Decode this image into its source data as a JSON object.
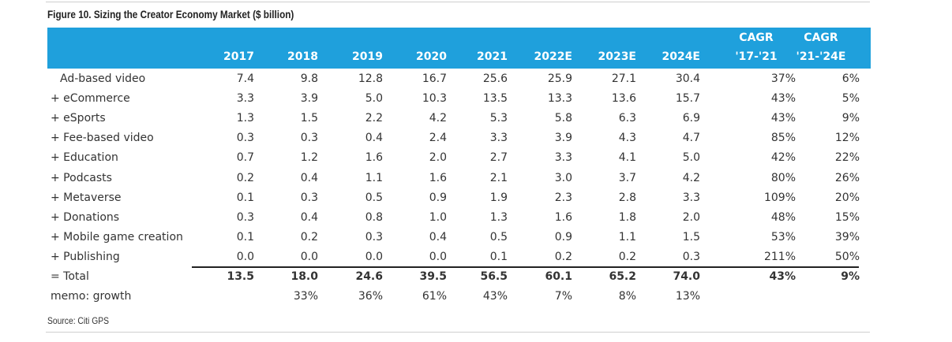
{
  "figure": {
    "title": "Figure 10. Sizing the Creator Economy Market ($ billion)",
    "source": "Source: Citi GPS"
  },
  "table": {
    "header_color": "#1fa0dc",
    "years": [
      "2017",
      "2018",
      "2019",
      "2020",
      "2021",
      "2022E",
      "2023E",
      "2024E"
    ],
    "cagr1": {
      "top": "CAGR",
      "bottom": "'17-'21"
    },
    "cagr2": {
      "top": "CAGR",
      "bottom": "'21-'24E"
    },
    "rows": [
      {
        "label": "Ad-based video",
        "values": [
          "7.4",
          "9.8",
          "12.8",
          "16.7",
          "25.6",
          "25.9",
          "27.1",
          "30.4"
        ],
        "cagr1": "37%",
        "cagr2": "6%"
      },
      {
        "label": "+ eCommerce",
        "values": [
          "3.3",
          "3.9",
          "5.0",
          "10.3",
          "13.5",
          "13.3",
          "13.6",
          "15.7"
        ],
        "cagr1": "43%",
        "cagr2": "5%"
      },
      {
        "label": "+ eSports",
        "values": [
          "1.3",
          "1.5",
          "2.2",
          "4.2",
          "5.3",
          "5.8",
          "6.3",
          "6.9"
        ],
        "cagr1": "43%",
        "cagr2": "9%"
      },
      {
        "label": "+ Fee-based video",
        "values": [
          "0.3",
          "0.3",
          "0.4",
          "2.4",
          "3.3",
          "3.9",
          "4.3",
          "4.7"
        ],
        "cagr1": "85%",
        "cagr2": "12%"
      },
      {
        "label": "+ Education",
        "values": [
          "0.7",
          "1.2",
          "1.6",
          "2.0",
          "2.7",
          "3.3",
          "4.1",
          "5.0"
        ],
        "cagr1": "42%",
        "cagr2": "22%"
      },
      {
        "label": "+ Podcasts",
        "values": [
          "0.2",
          "0.4",
          "1.1",
          "1.6",
          "2.1",
          "3.0",
          "3.7",
          "4.2"
        ],
        "cagr1": "80%",
        "cagr2": "26%"
      },
      {
        "label": "+ Metaverse",
        "values": [
          "0.1",
          "0.3",
          "0.5",
          "0.9",
          "1.9",
          "2.3",
          "2.8",
          "3.3"
        ],
        "cagr1": "109%",
        "cagr2": "20%"
      },
      {
        "label": "+ Donations",
        "values": [
          "0.3",
          "0.4",
          "0.8",
          "1.0",
          "1.3",
          "1.6",
          "1.8",
          "2.0"
        ],
        "cagr1": "48%",
        "cagr2": "15%"
      },
      {
        "label": "+ Mobile game creation",
        "values": [
          "0.1",
          "0.2",
          "0.3",
          "0.4",
          "0.5",
          "0.9",
          "1.1",
          "1.5"
        ],
        "cagr1": "53%",
        "cagr2": "39%"
      },
      {
        "label": "+ Publishing",
        "values": [
          "0.0",
          "0.0",
          "0.0",
          "0.0",
          "0.1",
          "0.2",
          "0.2",
          "0.3"
        ],
        "cagr1": "211%",
        "cagr2": "50%"
      }
    ],
    "total": {
      "label": "= Total",
      "values": [
        "13.5",
        "18.0",
        "24.6",
        "39.5",
        "56.5",
        "60.1",
        "65.2",
        "74.0"
      ],
      "cagr1": "43%",
      "cagr2": "9%"
    },
    "growth": {
      "label": "memo: growth",
      "values": [
        "",
        "33%",
        "36%",
        "61%",
        "43%",
        "7%",
        "8%",
        "13%"
      ],
      "cagr1": "",
      "cagr2": ""
    }
  }
}
